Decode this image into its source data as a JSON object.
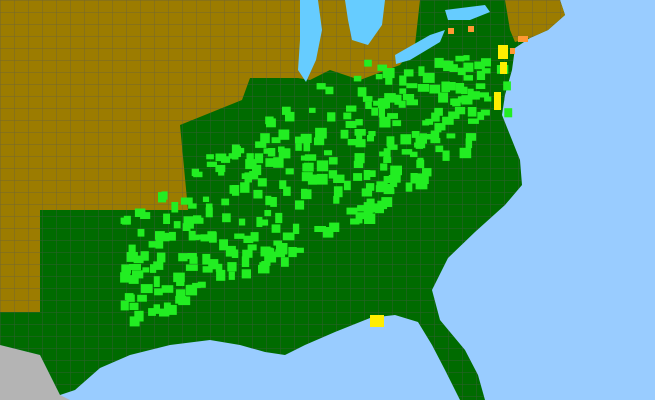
{
  "map": {
    "colors": {
      "ocean": "#99ccff",
      "lake": "#66ccff",
      "not_present_state": "#9c7c00",
      "present_state": "#006b00",
      "present_county": "#22ee22",
      "county_yellow": "#ffee00",
      "county_orange": "#ff9933",
      "foreign_land": "#b4b4b4",
      "county_border": "#555555"
    }
  }
}
